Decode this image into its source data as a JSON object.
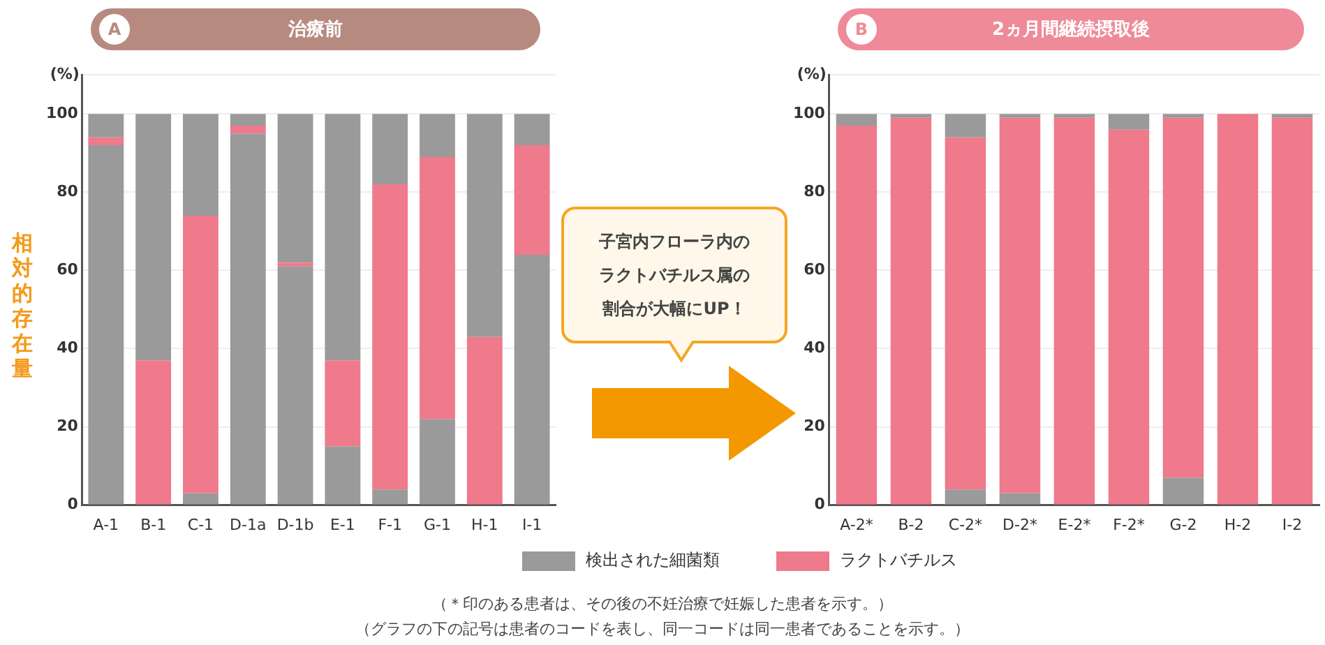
{
  "chart_data": [
    {
      "type": "bar",
      "title": "治療前",
      "ylabel": "相対的存在量",
      "stacked": true,
      "grid": "y",
      "legend": "bottom",
      "annotations": [
        "A",
        "(%)",
        "子宮内フローラ内の",
        "ラクトバチルス属の",
        "割合が大幅にUP！"
      ],
      "categories": [
        "A-1",
        "B-1",
        "C-1",
        "D-1a",
        "D-1b",
        "E-1",
        "F-1",
        "G-1",
        "H-1",
        "I-1"
      ],
      "series": [
        {
          "name": "検出された細菌類",
          "color": "#9a9a9a",
          "values": [
            92,
            0,
            3,
            95,
            61,
            15,
            4,
            22,
            0,
            64
          ]
        },
        {
          "name": "ラクトバチルス",
          "color": "#ee7a8c",
          "values": [
            2,
            37,
            71,
            2,
            1,
            22,
            78,
            67,
            43,
            28
          ]
        },
        {
          "color": "#9a9a9a",
          "values": [
            6,
            63,
            26,
            3,
            38,
            63,
            18,
            11,
            57,
            8
          ]
        }
      ],
      "ylim": [
        0,
        110
      ],
      "yticks": [
        0,
        20,
        40,
        60,
        80,
        100,
        {
          "value": 110,
          "label": null
        }
      ]
    },
    {
      "type": "bar",
      "title": "2ヵ月間継続摂取後",
      "stacked": true,
      "grid": "y",
      "annotations": [
        "B",
        "(%)",
        "（＊印のある患者は、その後の不妊治療で妊娠した患者を示す。）",
        "（グラフの下の記号は患者のコードを表し、同一コードは同一患者であることを示す。）"
      ],
      "categories": [
        "A-2*",
        "B-2",
        "C-2*",
        "D-2*",
        "E-2*",
        "F-2*",
        "G-2",
        "H-2",
        "I-2"
      ],
      "series": [
        {
          "color": "#9a9a9a",
          "values": [
            null,
            null,
            4,
            3,
            null,
            null,
            7,
            null,
            null
          ]
        },
        {
          "color": "#ee7a8c",
          "values": [
            97,
            99,
            90,
            96,
            99,
            96,
            92,
            100,
            99
          ]
        },
        {
          "color": "#9a9a9a",
          "values": [
            3,
            1,
            6,
            1,
            1,
            4,
            1,
            0,
            1
          ]
        }
      ],
      "ylim": [
        0,
        110
      ],
      "yticks": [
        0,
        20,
        40,
        60,
        80,
        100,
        {
          "value": 110,
          "label": null
        }
      ]
    }
  ]
}
